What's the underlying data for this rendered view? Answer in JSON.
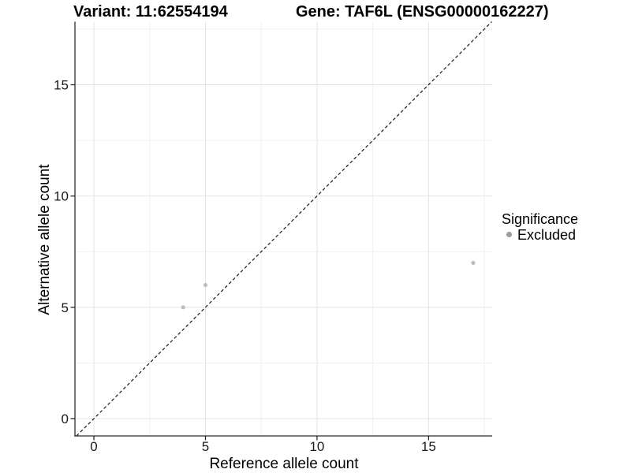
{
  "titles": {
    "left": "Variant: 11:62554194",
    "right": "Gene: TAF6L (ENSG00000162227)"
  },
  "axes": {
    "x_label": "Reference allele count",
    "y_label": "Alternative allele count"
  },
  "legend": {
    "title": "Significance",
    "items": [
      {
        "label": "Excluded",
        "color": "#9e9e9e"
      }
    ]
  },
  "colors": {
    "background": "#ffffff",
    "axis_line": "#2b2b2b",
    "grid_major": "#e4e4e4",
    "grid_minor": "#f1f1f1",
    "reference_line": "#1a1a1a",
    "point": "#bdbdbd"
  },
  "chart_data": {
    "type": "scatter",
    "title": "Variant: 11:62554194   |   Gene: TAF6L (ENSG00000162227)",
    "xlabel": "Reference allele count",
    "ylabel": "Alternative allele count",
    "xlim": [
      -0.85,
      17.85
    ],
    "ylim": [
      -0.78,
      17.83
    ],
    "x_ticks": [
      0,
      5,
      10,
      15
    ],
    "y_ticks": [
      0,
      5,
      10,
      15
    ],
    "x_minor_ticks": [
      2.5,
      7.5,
      12.5,
      17.5
    ],
    "y_minor_ticks": [
      2.5,
      7.5,
      12.5,
      17.5
    ],
    "grid": true,
    "legend_position": "right",
    "series": [
      {
        "name": "Excluded",
        "color": "#bdbdbd",
        "points": [
          {
            "x": 4,
            "y": 5
          },
          {
            "x": 5,
            "y": 6
          },
          {
            "x": 17,
            "y": 7
          }
        ]
      }
    ],
    "reference_line": {
      "type": "identity",
      "slope": 1,
      "intercept": 0,
      "dashed": true
    }
  }
}
